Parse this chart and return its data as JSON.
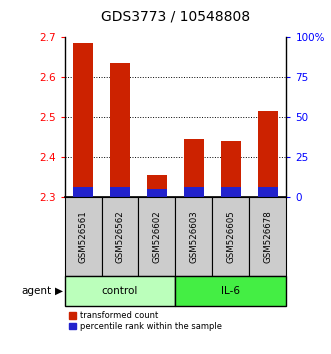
{
  "title": "GDS3773 / 10548808",
  "samples": [
    "GSM526561",
    "GSM526562",
    "GSM526602",
    "GSM526603",
    "GSM526605",
    "GSM526678"
  ],
  "red_values": [
    2.685,
    2.635,
    2.355,
    2.445,
    2.44,
    2.515
  ],
  "blue_values": [
    2.327,
    2.327,
    2.32,
    2.325,
    2.327,
    2.327
  ],
  "base_value": 2.3,
  "ylim": [
    2.3,
    2.7
  ],
  "yticks": [
    2.3,
    2.4,
    2.5,
    2.6,
    2.7
  ],
  "y2ticks": [
    0,
    25,
    50,
    75,
    100
  ],
  "y2labels": [
    "0",
    "25",
    "50",
    "75",
    "100%"
  ],
  "control_label": "control",
  "il6_label": "IL-6",
  "agent_label": "agent",
  "legend_red": "transformed count",
  "legend_blue": "percentile rank within the sample",
  "control_color": "#bbffbb",
  "il6_color": "#44ee44",
  "bar_color_red": "#cc2200",
  "bar_color_blue": "#2222cc",
  "bar_width": 0.55,
  "title_fontsize": 10
}
